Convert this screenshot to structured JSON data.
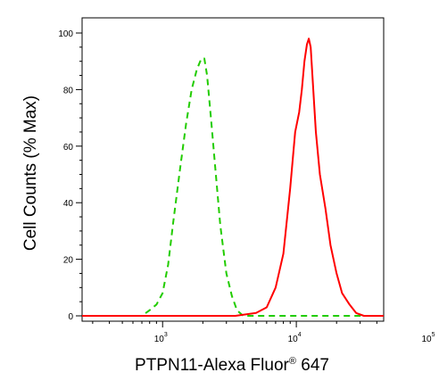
{
  "chart_data": {
    "type": "line",
    "xlabel": "PTPN11-Alexa Fluor",
    "xlabel_superscript": "®",
    "xlabel_suffix": " 647",
    "ylabel": "Cell Counts (% Max)",
    "x_scale": "log",
    "xlim": [
      250,
      45000
    ],
    "ylim": [
      0,
      105
    ],
    "x_ticks": [
      {
        "value": 1000,
        "base": "10",
        "exp": "3"
      },
      {
        "value": 10000,
        "base": "10",
        "exp": "4"
      },
      {
        "value": 100000,
        "base": "10",
        "exp": "5"
      }
    ],
    "y_ticks": [
      0,
      20,
      40,
      60,
      80,
      100
    ],
    "grid": false,
    "series": [
      {
        "color": "#22cc00",
        "dash": true,
        "points": [
          [
            250,
            0
          ],
          [
            700,
            0
          ],
          [
            800,
            2
          ],
          [
            900,
            4
          ],
          [
            1000,
            8
          ],
          [
            1100,
            18
          ],
          [
            1200,
            33
          ],
          [
            1350,
            52
          ],
          [
            1500,
            68
          ],
          [
            1650,
            80
          ],
          [
            1800,
            87
          ],
          [
            1950,
            91
          ],
          [
            2050,
            91
          ],
          [
            2150,
            85
          ],
          [
            2300,
            70
          ],
          [
            2500,
            50
          ],
          [
            2700,
            32
          ],
          [
            3000,
            15
          ],
          [
            3300,
            7
          ],
          [
            3600,
            2
          ],
          [
            4000,
            0
          ],
          [
            45000,
            0
          ]
        ]
      },
      {
        "color": "#ff0000",
        "dash": false,
        "points": [
          [
            250,
            0
          ],
          [
            3500,
            0
          ],
          [
            5000,
            1
          ],
          [
            6000,
            3
          ],
          [
            7000,
            10
          ],
          [
            8000,
            22
          ],
          [
            9000,
            45
          ],
          [
            9800,
            65
          ],
          [
            10500,
            72
          ],
          [
            11000,
            80
          ],
          [
            11500,
            90
          ],
          [
            12000,
            96
          ],
          [
            12400,
            98
          ],
          [
            12800,
            95
          ],
          [
            13300,
            82
          ],
          [
            14000,
            65
          ],
          [
            15000,
            50
          ],
          [
            16500,
            38
          ],
          [
            18000,
            25
          ],
          [
            20000,
            15
          ],
          [
            22000,
            8
          ],
          [
            25000,
            4
          ],
          [
            28000,
            1
          ],
          [
            32000,
            0
          ],
          [
            45000,
            0
          ]
        ]
      }
    ]
  }
}
